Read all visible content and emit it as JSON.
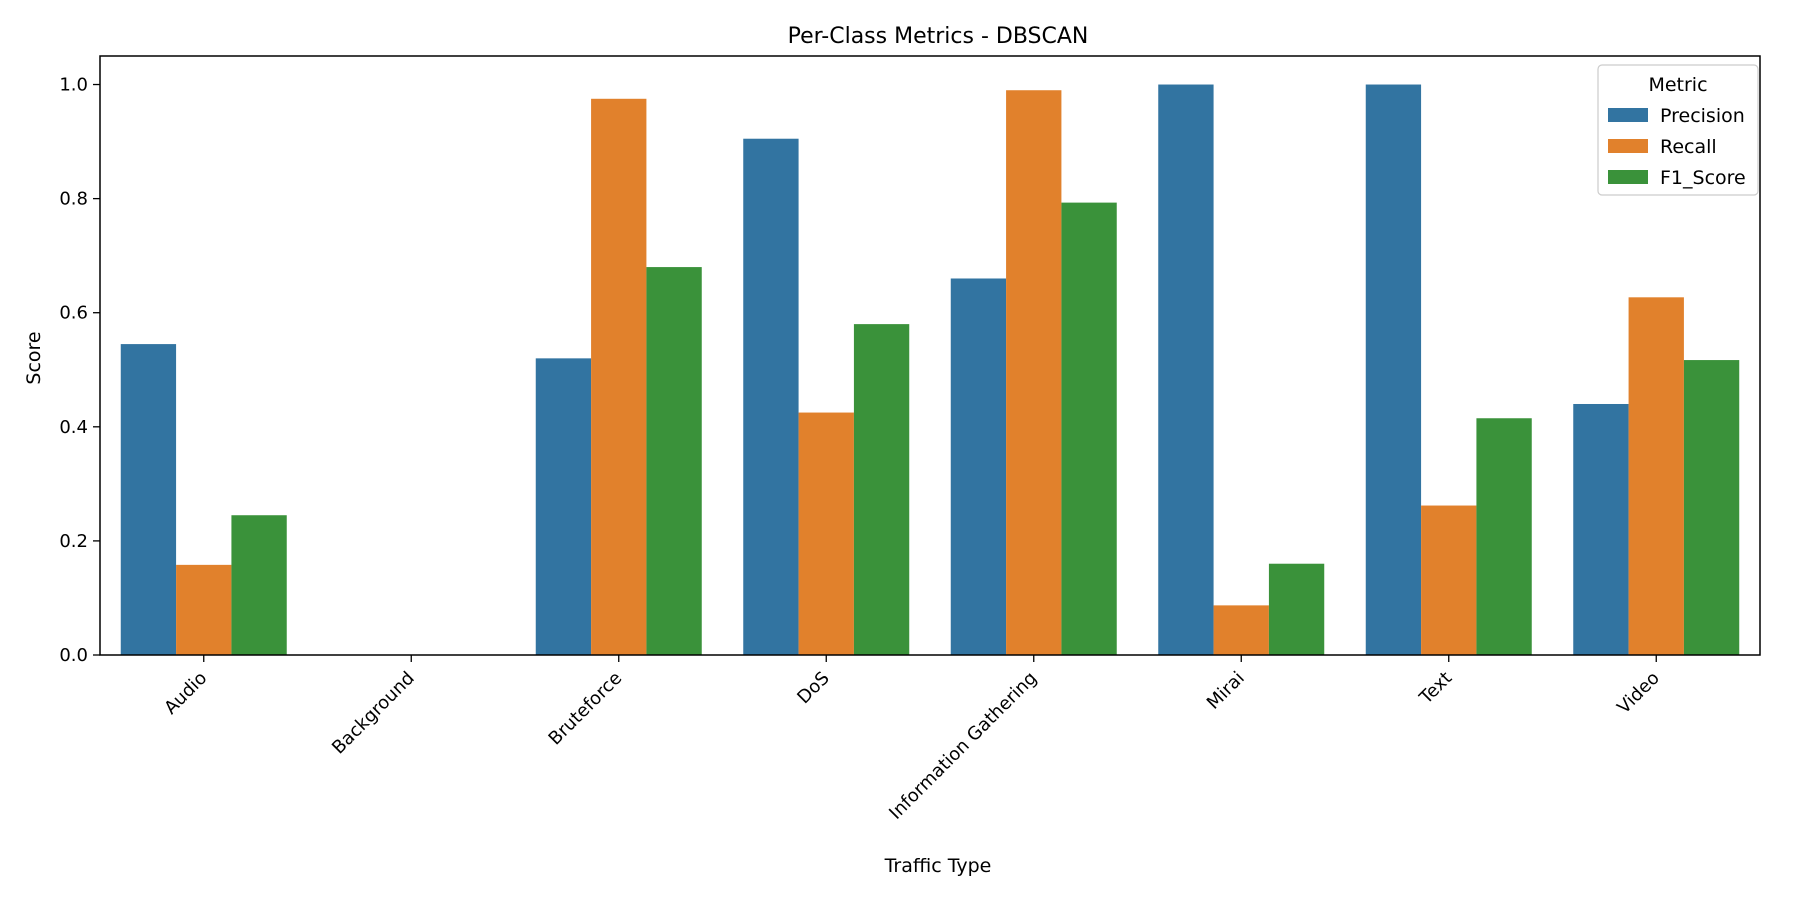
{
  "chart_data": {
    "type": "bar",
    "title": "Per-Class Metrics - DBSCAN",
    "xlabel": "Traffic Type",
    "ylabel": "Score",
    "ylim": [
      0,
      1.05
    ],
    "yticks": [
      "0.0",
      "0.2",
      "0.4",
      "0.6",
      "0.8",
      "1.0"
    ],
    "categories": [
      "Audio",
      "Background",
      "Bruteforce",
      "DoS",
      "Information Gathering",
      "Mirai",
      "Text",
      "Video"
    ],
    "legend": {
      "title": "Metric",
      "placement": "top-right"
    },
    "grid": false,
    "series": [
      {
        "name": "Precision",
        "color": "#3274a1",
        "values": [
          0.545,
          0.0,
          0.52,
          0.905,
          0.66,
          1.0,
          1.0,
          0.44
        ]
      },
      {
        "name": "Recall",
        "color": "#e1812c",
        "values": [
          0.158,
          0.0,
          0.975,
          0.425,
          0.99,
          0.087,
          0.262,
          0.627
        ]
      },
      {
        "name": "F1_Score",
        "color": "#3a923a",
        "values": [
          0.245,
          0.0,
          0.68,
          0.58,
          0.793,
          0.16,
          0.415,
          0.517
        ]
      }
    ]
  }
}
